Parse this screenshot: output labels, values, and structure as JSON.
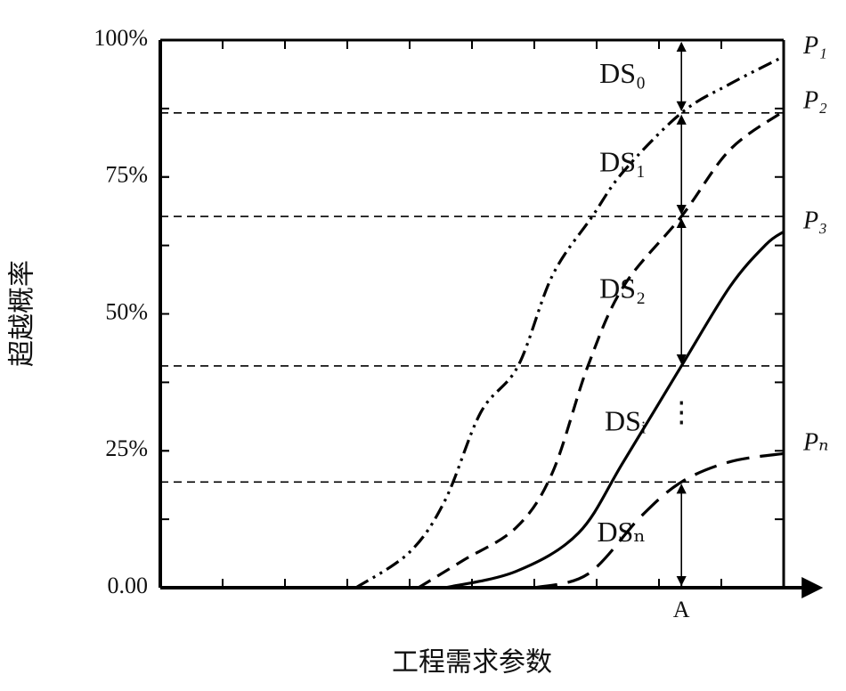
{
  "chart_data": {
    "type": "line",
    "y_label": "超越概率",
    "x_label": "工程需求参数",
    "xlim": [
      0,
      10
    ],
    "ylim": [
      0,
      100
    ],
    "yticks": [
      {
        "value": 0,
        "label": "0.00"
      },
      {
        "value": 25,
        "label": "25%"
      },
      {
        "value": 50,
        "label": "50%"
      },
      {
        "value": 75,
        "label": "75%"
      },
      {
        "value": 100,
        "label": "100%"
      }
    ],
    "series": [
      {
        "name": "P₁",
        "color": "#000000",
        "dash": "dash-dot-dot",
        "x": [
          3.14,
          4.0,
          4.57,
          5.14,
          5.74,
          6.29,
          6.93,
          7.43,
          8.36,
          9.14,
          10.0
        ],
        "values": [
          0,
          6.5,
          16,
          32,
          40.5,
          57,
          67.8,
          76,
          86.7,
          92,
          97
        ]
      },
      {
        "name": "P₂",
        "color": "#000000",
        "dash": "dashed",
        "x": [
          4.14,
          4.86,
          5.71,
          6.29,
          6.86,
          7.43,
          8.36,
          9.14,
          10.0
        ],
        "values": [
          0,
          5,
          11,
          21,
          40.5,
          55,
          67.8,
          80,
          87
        ]
      },
      {
        "name": "P₃",
        "color": "#000000",
        "dash": "solid",
        "x": [
          4.57,
          5.71,
          6.71,
          7.43,
          8.36,
          9.14,
          9.71,
          10.0
        ],
        "values": [
          0,
          3,
          10,
          23,
          40.5,
          55,
          62.6,
          65
        ]
      },
      {
        "name": "Pₙ",
        "color": "#000000",
        "dash": "long-dash",
        "x": [
          6.0,
          6.86,
          7.71,
          8.36,
          9.14,
          10.0
        ],
        "values": [
          0,
          2.5,
          13,
          19.3,
          23,
          24.5
        ]
      }
    ],
    "thresholds": [
      86.7,
      67.8,
      40.5,
      19.3
    ],
    "marker": {
      "label": "A",
      "x": 8.36
    },
    "damage_states": [
      "DS₀",
      "DS₁",
      "DS₂",
      "DSᵢ",
      "DSₙ"
    ],
    "ellipsis": "⋮"
  }
}
